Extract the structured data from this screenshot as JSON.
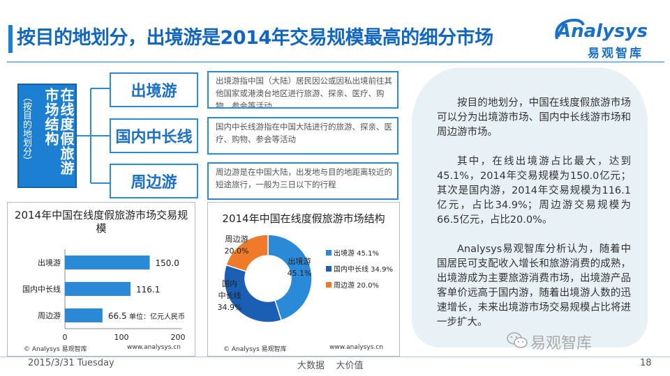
{
  "header": {
    "title": "按目的地划分，出境游是2014年交易规模最高的细分市场",
    "logo_main": "nalysys",
    "logo_initial": "A",
    "logo_sub": "易观智库"
  },
  "structure": {
    "root_title": "在线度假旅游市场结构",
    "root_subtitle": "（按目的地划分）",
    "categories": [
      {
        "name": "出境游",
        "description": "出境游指中国（大陆）居民因公或因私出境前往其他国家或港澳台地区进行旅游、探亲、医疗、购物、参会等活动"
      },
      {
        "name": "国内中长线",
        "description": "国内中长线游指在中国大陆进行的旅游、探亲、医疗、购物、参会等活动"
      },
      {
        "name": "周边游",
        "description": "周边游是在中国大陆，出发地与目的地距离较近的短途旅行，一般为三日以下的行程"
      }
    ]
  },
  "bar_chart": {
    "footer_left": "© Analysys 易观智库",
    "footer_right": "www.analysys.cn",
    "unit_note": "单位：亿元人民币"
  },
  "pie_chart": {
    "footer_left": "© Analysys 易观智库",
    "footer_right": "www.analysys.cn"
  },
  "chart_data": [
    {
      "type": "bar",
      "title": "2014年中国在线度假旅游市场交易规模",
      "categories": [
        "出境游",
        "国内中长线",
        "周边游"
      ],
      "values": [
        150.0,
        116.1,
        66.5
      ],
      "value_labels": [
        "150.0",
        "116.1",
        "66.5"
      ],
      "xlim": [
        0,
        200
      ],
      "xticks": [
        "0",
        "100",
        "200"
      ],
      "color": "#2a8ad8"
    },
    {
      "type": "pie",
      "title": "2014年中国在线度假旅游市场结构",
      "labels": [
        "出境游",
        "国内中长线",
        "周边游"
      ],
      "values": [
        45.1,
        34.9,
        20.0
      ],
      "colors": [
        "#2a8ad8",
        "#1a5fb4",
        "#ee7a2a"
      ],
      "slice_labels": [
        [
          "出境游",
          "45.1%"
        ],
        [
          "国内",
          "中长线",
          "34.9%"
        ],
        [
          "周边游",
          "20.0%"
        ]
      ],
      "legend": [
        "出境游 45.1%",
        "国内中长线 34.9%",
        "周边游 20.0%"
      ]
    }
  ],
  "summary": {
    "paragraphs": [
      "按目的地划分，中国在线度假旅游市场可以分为出境游市场、国内中长线游市场和周边游市场。",
      "其中，在线出境游占比最大，达到45.1%，2014年交易规模为150.0亿元；其次是国内游，2014年交易规模为116.1亿元，占比34.9%；周边游交易规模为66.5亿元，占比20.0%。",
      "Analysys易观智库分析认为，随着中国居民可支配收入增长和旅游消费的成熟，出境游成为主要旅游消费市场，出境游产品客单价远高于国内游，随着出境游人数的迅速增长，未来出境游市场交易规模占比将进一步扩大。"
    ]
  },
  "watermark": "易观智库",
  "footer": {
    "date": "2015/3/31 Tuesday",
    "tagline": "大数据    大价值",
    "page": "18"
  }
}
